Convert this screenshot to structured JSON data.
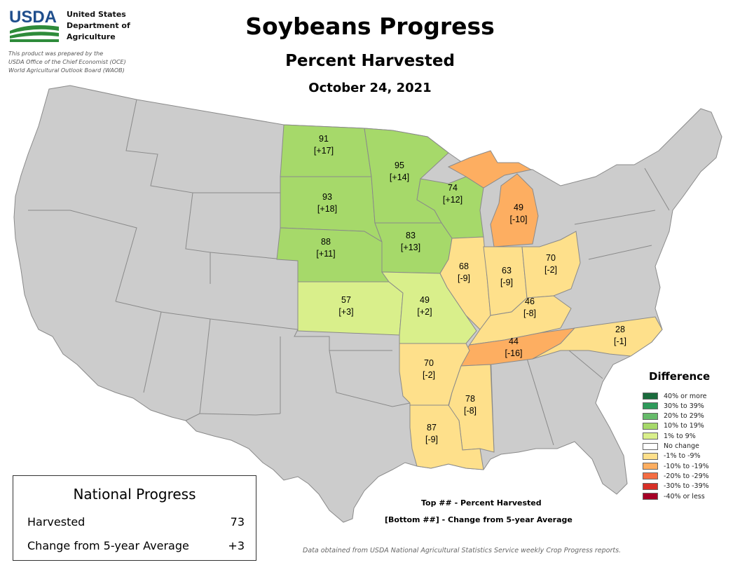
{
  "header": {
    "agency_lines": [
      "United States",
      "Department of",
      "Agriculture"
    ],
    "logo_text": "USDA",
    "prepared_lines": [
      "This product was prepared by the",
      "USDA Office of the Chief Economist (OCE)",
      "World Agricultural Outlook Board (WAOB)"
    ],
    "title": "Soybeans Progress",
    "subtitle": "Percent Harvested",
    "date": "October 24, 2021"
  },
  "states": [
    {
      "id": "ND",
      "harvested": "91",
      "diff": "[+17]",
      "category": "10% to 19%"
    },
    {
      "id": "MN",
      "harvested": "95",
      "diff": "[+14]",
      "category": "10% to 19%"
    },
    {
      "id": "SD",
      "harvested": "93",
      "diff": "[+18]",
      "category": "10% to 19%"
    },
    {
      "id": "WI",
      "harvested": "74",
      "diff": "[+12]",
      "category": "10% to 19%"
    },
    {
      "id": "MI",
      "harvested": "49",
      "diff": "[-10]",
      "category": "-10% to -19%"
    },
    {
      "id": "NE",
      "harvested": "88",
      "diff": "[+11]",
      "category": "10% to 19%"
    },
    {
      "id": "IA",
      "harvested": "83",
      "diff": "[+13]",
      "category": "10% to 19%"
    },
    {
      "id": "IL",
      "harvested": "68",
      "diff": "[-9]",
      "category": "-1% to -9%"
    },
    {
      "id": "IN",
      "harvested": "63",
      "diff": "[-9]",
      "category": "-1% to -9%"
    },
    {
      "id": "OH",
      "harvested": "70",
      "diff": "[-2]",
      "category": "-1% to -9%"
    },
    {
      "id": "KS",
      "harvested": "57",
      "diff": "[+3]",
      "category": "1% to 9%"
    },
    {
      "id": "MO",
      "harvested": "49",
      "diff": "[+2]",
      "category": "1% to 9%"
    },
    {
      "id": "KY",
      "harvested": "46",
      "diff": "[-8]",
      "category": "-1% to -9%"
    },
    {
      "id": "NC",
      "harvested": "28",
      "diff": "[-1]",
      "category": "-1% to -9%"
    },
    {
      "id": "TN",
      "harvested": "44",
      "diff": "[-16]",
      "category": "-10% to -19%"
    },
    {
      "id": "AR",
      "harvested": "70",
      "diff": "[-2]",
      "category": "-1% to -9%"
    },
    {
      "id": "MS",
      "harvested": "78",
      "diff": "[-8]",
      "category": "-1% to -9%"
    },
    {
      "id": "LA",
      "harvested": "87",
      "diff": "[-9]",
      "category": "-1% to -9%"
    }
  ],
  "legend": {
    "title": "Difference",
    "items": [
      {
        "label": "40% or more",
        "color": "#1a6b3c"
      },
      {
        "label": "30% to 39%",
        "color": "#2e9a5a"
      },
      {
        "label": "20% to 29%",
        "color": "#66bb6a"
      },
      {
        "label": "10% to 19%",
        "color": "#a6d96a"
      },
      {
        "label": "1% to 9%",
        "color": "#d9ef8b"
      },
      {
        "label": "No change",
        "color": "#ffffff"
      },
      {
        "label": "-1% to -9%",
        "color": "#fee08b"
      },
      {
        "label": "-10% to -19%",
        "color": "#fdae61"
      },
      {
        "label": "-20% to -29%",
        "color": "#f46d43"
      },
      {
        "label": "-30% to -39%",
        "color": "#d73027"
      },
      {
        "label": "-40% or less",
        "color": "#a50026"
      }
    ],
    "no_data_color": "#cccccc"
  },
  "national": {
    "title": "National Progress",
    "harvested_label": "Harvested",
    "harvested_value": "73",
    "change_label": "Change from 5-year Average",
    "change_value": "+3"
  },
  "notes": {
    "top": "Top ## - Percent Harvested",
    "bottom": "[Bottom ##] - Change from 5-year Average",
    "source": "Data obtained from USDA National Agricultural Statistics Service weekly Crop Progress reports."
  }
}
